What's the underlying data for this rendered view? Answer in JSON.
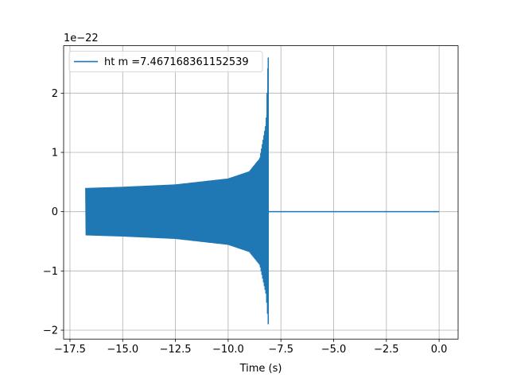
{
  "chart_data": {
    "type": "line",
    "xlabel": "Time (s)",
    "ylabel": "",
    "scale_label": "1e−22",
    "xlim": [
      -17.8,
      0.9
    ],
    "ylim": [
      -2.15,
      2.8
    ],
    "x_ticks": [
      {
        "value": -17.5,
        "label": "−17.5"
      },
      {
        "value": -15.0,
        "label": "−15.0"
      },
      {
        "value": -12.5,
        "label": "−12.5"
      },
      {
        "value": -10.0,
        "label": "−10.0"
      },
      {
        "value": -7.5,
        "label": "−7.5"
      },
      {
        "value": -5.0,
        "label": "−5.0"
      },
      {
        "value": -2.5,
        "label": "−2.5"
      },
      {
        "value": 0.0,
        "label": "0.0"
      }
    ],
    "y_ticks": [
      {
        "value": -2,
        "label": "−2"
      },
      {
        "value": -1,
        "label": "−1"
      },
      {
        "value": 0,
        "label": "0"
      },
      {
        "value": 1,
        "label": "1"
      },
      {
        "value": 2,
        "label": "2"
      }
    ],
    "grid": true,
    "legend_position": "top-left",
    "series": [
      {
        "name": "ht m =7.467168361152539",
        "color": "#1f77b4",
        "start_time": -16.75,
        "merger_time": -8.1,
        "end_time": 0.0,
        "initial_amplitude": 0.4,
        "peak_positive": 2.6,
        "peak_negative": -1.9,
        "amplitude_envelope": [
          {
            "x": -16.75,
            "upper": 0.4,
            "lower": -0.4
          },
          {
            "x": -15.0,
            "upper": 0.42,
            "lower": -0.42
          },
          {
            "x": -12.5,
            "upper": 0.46,
            "lower": -0.46
          },
          {
            "x": -10.0,
            "upper": 0.56,
            "lower": -0.56
          },
          {
            "x": -9.0,
            "upper": 0.68,
            "lower": -0.68
          },
          {
            "x": -8.5,
            "upper": 0.9,
            "lower": -0.9
          },
          {
            "x": -8.2,
            "upper": 1.5,
            "lower": -1.4
          },
          {
            "x": -8.1,
            "upper": 2.6,
            "lower": -1.9
          }
        ],
        "post_merger_value": 0.0
      }
    ]
  }
}
